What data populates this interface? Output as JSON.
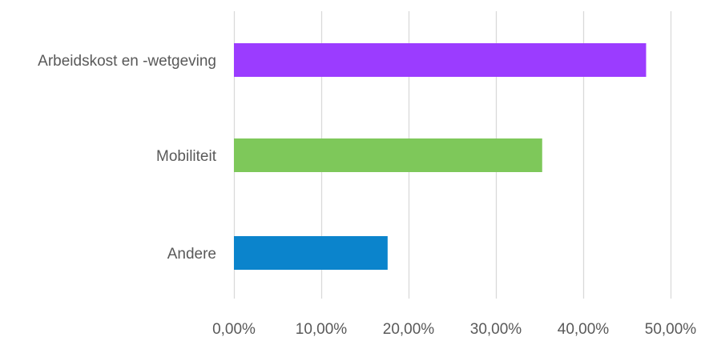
{
  "chart_data": {
    "type": "bar",
    "orientation": "horizontal",
    "categories": [
      "Arbeidskost en -wetgeving",
      "Mobiliteit",
      "Andere"
    ],
    "values": [
      0.472,
      0.353,
      0.176
    ],
    "colors": [
      "#9b3cff",
      "#7ec85a",
      "#0b84cc"
    ],
    "xlim": [
      0,
      0.5
    ],
    "xticks": [
      0,
      0.1,
      0.2,
      0.3,
      0.4,
      0.5
    ],
    "xtick_labels": [
      "0,00%",
      "10,00%",
      "20,00%",
      "30,00%",
      "40,00%",
      "50,00%"
    ],
    "title": "",
    "xlabel": "",
    "ylabel": "",
    "grid": "vertical",
    "legend": "none"
  },
  "colors": {
    "gridline": "#d9d9d9",
    "label_text": "#595959"
  }
}
